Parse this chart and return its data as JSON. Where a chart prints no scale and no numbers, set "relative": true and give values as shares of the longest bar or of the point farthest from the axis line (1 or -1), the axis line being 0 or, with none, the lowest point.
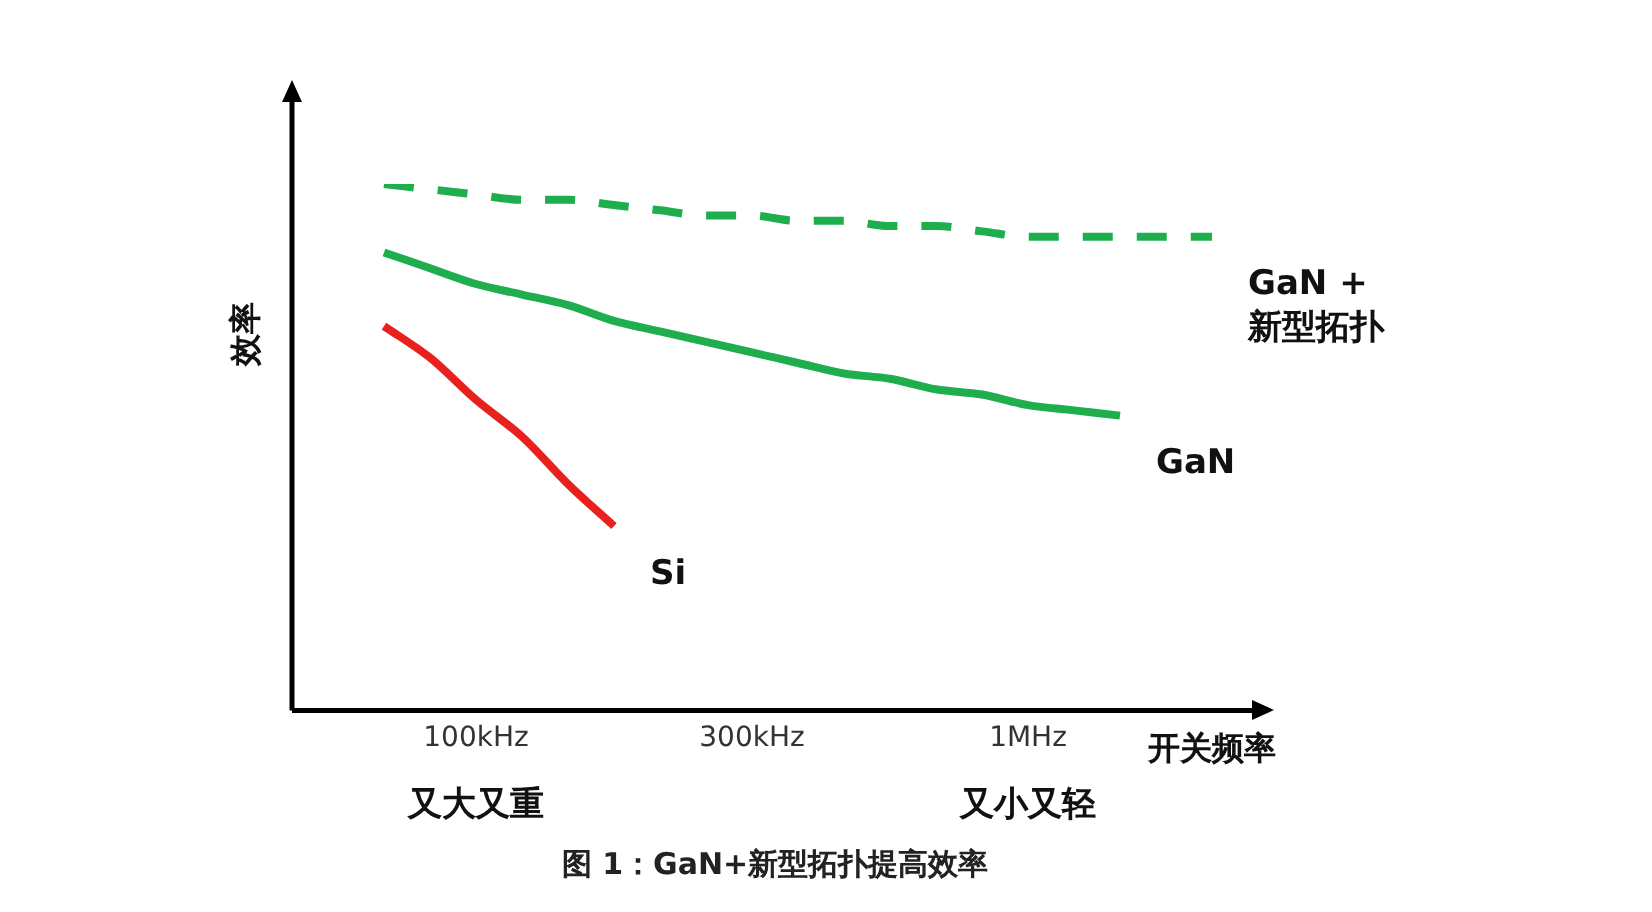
{
  "chart_data": {
    "type": "line",
    "title": "图 1：GaN+新型拓扑提高效率",
    "xlabel": "开关频率",
    "ylabel": "效率",
    "relative": true,
    "categories": [
      null,
      null,
      null,
      null,
      "100kHz",
      null,
      null,
      null,
      null,
      null,
      "300kHz",
      null,
      null,
      null,
      null,
      null,
      "1MHz",
      null,
      null,
      null,
      null,
      null
    ],
    "series": [
      {
        "name": "GaN + 新型拓扑",
        "color": "#1fae4e",
        "line_style": "dashed",
        "values": [
          null,
          null,
          1.0,
          0.99,
          0.98,
          0.97,
          0.97,
          0.96,
          0.95,
          0.94,
          0.94,
          0.93,
          0.93,
          0.92,
          0.92,
          0.91,
          0.9,
          0.9,
          0.9,
          0.9,
          0.9,
          null
        ]
      },
      {
        "name": "GaN",
        "color": "#1fae4e",
        "line_style": "solid",
        "values": [
          null,
          null,
          0.87,
          0.84,
          0.81,
          0.79,
          0.77,
          0.74,
          0.72,
          0.7,
          0.68,
          0.66,
          0.64,
          0.63,
          0.61,
          0.6,
          0.58,
          0.57,
          0.56,
          null,
          null,
          null
        ]
      },
      {
        "name": "Si",
        "color": "#e8201e",
        "line_style": "solid",
        "values": [
          null,
          null,
          0.73,
          0.67,
          0.59,
          0.52,
          0.43,
          0.35,
          null,
          null,
          null,
          null,
          null,
          null,
          null,
          null,
          null,
          null,
          null,
          null,
          null,
          null
        ]
      }
    ],
    "annotations": [
      "又大又重",
      "又小又轻"
    ],
    "grid": false,
    "legend": false,
    "marker": "none"
  }
}
